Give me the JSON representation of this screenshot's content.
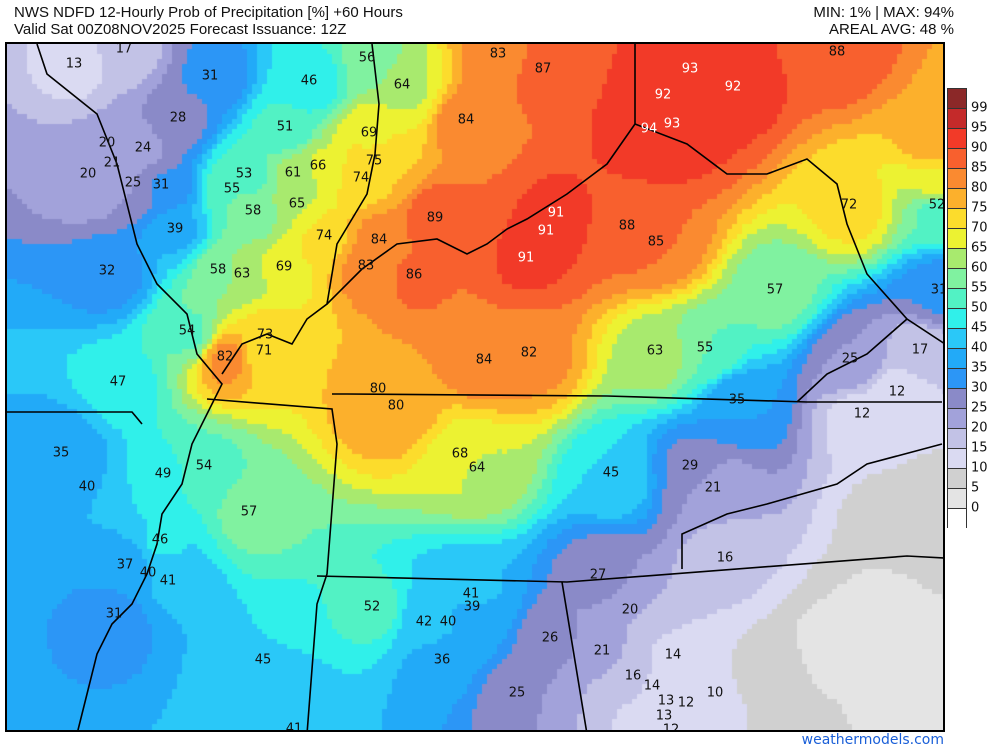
{
  "header": {
    "title": "NWS NDFD 12-Hourly Prob of Precipitation [%] +60 Hours",
    "valid": "Valid Sat 00Z08NOV2025   Forecast Issuance: 12Z",
    "minmax": "MIN: 1% | MAX: 94%",
    "areal_avg": "AREAL AVG: 48 %"
  },
  "legend": {
    "labels": [
      "99",
      "95",
      "90",
      "85",
      "80",
      "75",
      "70",
      "65",
      "60",
      "55",
      "50",
      "45",
      "40",
      "35",
      "30",
      "25",
      "20",
      "15",
      "10",
      "5",
      "0"
    ],
    "colors": [
      "#8b2828",
      "#c42a2a",
      "#f23a28",
      "#f8602e",
      "#fa8a30",
      "#fcb02c",
      "#fcdc2c",
      "#ecf232",
      "#a8ea6e",
      "#80f2a0",
      "#52f2c4",
      "#30f0ea",
      "#2ac8f8",
      "#22aaf8",
      "#2c96f6",
      "#8a8ac8",
      "#a2a2da",
      "#c2c2e6",
      "#dadaf2",
      "#d0d0d0",
      "#e4e4e4",
      "#ffffff"
    ]
  },
  "map_values": [
    "17",
    "13",
    "31",
    "46",
    "56",
    "64",
    "83",
    "87",
    "93",
    "88",
    "28",
    "51",
    "69",
    "84",
    "92",
    "92",
    "94",
    "93",
    "20",
    "24",
    "21",
    "20",
    "25",
    "31",
    "53",
    "61",
    "66",
    "75",
    "74",
    "55",
    "58",
    "65",
    "89",
    "91",
    "91",
    "88",
    "85",
    "72",
    "52",
    "39",
    "74",
    "84",
    "32",
    "58",
    "63",
    "69",
    "83",
    "86",
    "91",
    "57",
    "31",
    "54",
    "73",
    "71",
    "82",
    "84",
    "82",
    "63",
    "55",
    "25",
    "17",
    "47",
    "80",
    "80",
    "35",
    "12",
    "12",
    "35",
    "68",
    "64",
    "45",
    "29",
    "49",
    "54",
    "40",
    "21",
    "57",
    "46",
    "16",
    "37",
    "40",
    "41",
    "27",
    "41",
    "52",
    "42",
    "40",
    "39",
    "31",
    "20",
    "26",
    "21",
    "14",
    "36",
    "45",
    "16",
    "14",
    "12",
    "13",
    "10",
    "25",
    "13",
    "12",
    "41"
  ],
  "footer": "weathermodels.com"
}
